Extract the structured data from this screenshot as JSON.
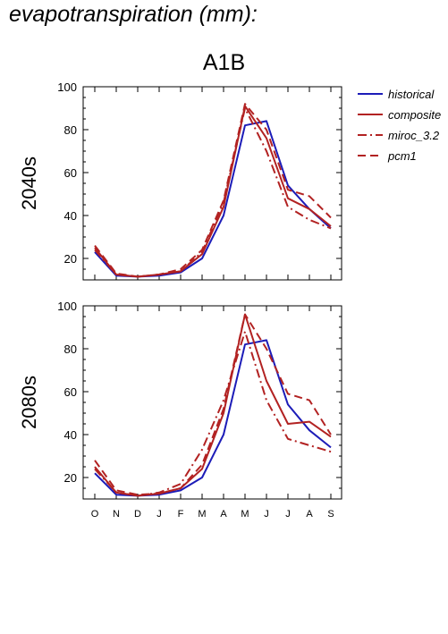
{
  "page": {
    "title": "evapotranspiration (mm):",
    "scenario": "A1B"
  },
  "legend": [
    {
      "name": "historical",
      "color": "#1c1cb8",
      "dash": "solid"
    },
    {
      "name": "composite",
      "color": "#b22222",
      "dash": "solid"
    },
    {
      "name": "miroc_3.2",
      "color": "#b22222",
      "dash": "dashdot"
    },
    {
      "name": "pcm1",
      "color": "#b22222",
      "dash": "dashed"
    }
  ],
  "chart_data": [
    {
      "type": "line",
      "title": "",
      "panel_label": "2040s",
      "categories": [
        "O",
        "N",
        "D",
        "J",
        "F",
        "M",
        "A",
        "M",
        "J",
        "J",
        "A",
        "S"
      ],
      "ylim": [
        10,
        100
      ],
      "yticks": [
        20,
        40,
        60,
        80,
        100
      ],
      "series": [
        {
          "name": "historical",
          "values": [
            23,
            12,
            11.5,
            12,
            13.5,
            20,
            40,
            82,
            84,
            54,
            43,
            34
          ]
        },
        {
          "name": "composite",
          "values": [
            25,
            12.5,
            11.5,
            12.5,
            14,
            22,
            44,
            91,
            76,
            48,
            43,
            35
          ]
        },
        {
          "name": "miroc_3.2",
          "values": [
            24,
            12.5,
            11.5,
            12.5,
            14,
            23,
            46,
            90,
            70,
            44,
            38,
            34
          ]
        },
        {
          "name": "pcm1",
          "values": [
            26,
            13,
            11.5,
            12.5,
            15,
            24,
            47,
            92,
            80,
            52,
            49,
            39
          ]
        }
      ]
    },
    {
      "type": "line",
      "title": "",
      "panel_label": "2080s",
      "categories": [
        "O",
        "N",
        "D",
        "J",
        "F",
        "M",
        "A",
        "M",
        "J",
        "J",
        "A",
        "S"
      ],
      "ylim": [
        10,
        100
      ],
      "yticks": [
        20,
        40,
        60,
        80,
        100
      ],
      "series": [
        {
          "name": "historical",
          "values": [
            22,
            12,
            11.5,
            12,
            14,
            20,
            40,
            82,
            84,
            54,
            42,
            34
          ]
        },
        {
          "name": "composite",
          "values": [
            25,
            13,
            11.5,
            12.5,
            15,
            24,
            50,
            96,
            65,
            45,
            46,
            39
          ]
        },
        {
          "name": "miroc_3.2",
          "values": [
            24,
            13,
            11.5,
            13,
            17,
            33,
            56,
            88,
            56,
            38,
            35,
            32
          ]
        },
        {
          "name": "pcm1",
          "values": [
            28,
            14,
            12,
            12.5,
            15,
            26,
            52,
            96,
            80,
            59,
            56,
            40
          ]
        }
      ]
    }
  ]
}
